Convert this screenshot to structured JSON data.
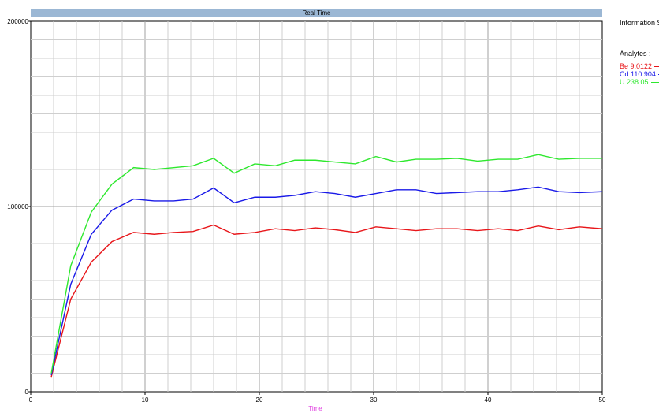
{
  "chart_data": {
    "type": "line",
    "title": "Real Time",
    "xlabel": "Time",
    "ylabel": "",
    "xlim": [
      0,
      50
    ],
    "ylim": [
      0,
      200000
    ],
    "xticks": [
      0,
      10,
      20,
      30,
      40,
      50
    ],
    "yticks": [
      0,
      100000,
      200000
    ],
    "xtick_labels": [
      "0",
      "10",
      "20",
      "30",
      "40",
      "50"
    ],
    "ytick_labels": [
      "0",
      "100000",
      "200000"
    ],
    "grid": true,
    "legend_title": "Analytes :",
    "series": [
      {
        "name": "Be 9.0122",
        "color": "#e8161a",
        "x": [
          1.8,
          3.5,
          5.3,
          7.1,
          9.0,
          10.8,
          12.5,
          14.2,
          16.0,
          17.8,
          19.6,
          21.4,
          23.1,
          24.9,
          26.6,
          28.4,
          30.2,
          32.0,
          33.7,
          35.5,
          37.3,
          39.1,
          40.9,
          42.6,
          44.4,
          46.2,
          48.0,
          50.0
        ],
        "values": [
          8000,
          50000,
          70000,
          81000,
          86000,
          85000,
          86000,
          86500,
          90000,
          85000,
          86000,
          88000,
          87000,
          88500,
          87500,
          86000,
          89000,
          88000,
          87000,
          88000,
          88000,
          87000,
          88000,
          87000,
          89500,
          87500,
          89000,
          88000
        ]
      },
      {
        "name": "Cd 110.904",
        "color": "#1a1ae8",
        "x": [
          1.8,
          3.5,
          5.3,
          7.1,
          9.0,
          10.8,
          12.5,
          14.2,
          16.0,
          17.8,
          19.6,
          21.4,
          23.1,
          24.9,
          26.6,
          28.4,
          30.2,
          32.0,
          33.7,
          35.5,
          37.3,
          39.1,
          40.9,
          42.6,
          44.4,
          46.2,
          48.0,
          50.0
        ],
        "values": [
          9000,
          58000,
          85000,
          98000,
          104000,
          103000,
          103000,
          104000,
          110000,
          102000,
          105000,
          105000,
          106000,
          108000,
          107000,
          105000,
          107000,
          109000,
          109000,
          107000,
          107500,
          108000,
          108000,
          109000,
          110500,
          108000,
          107500,
          108000
        ]
      },
      {
        "name": "U 238.05",
        "color": "#2ee82e",
        "x": [
          1.8,
          3.5,
          5.3,
          7.1,
          9.0,
          10.8,
          12.5,
          14.2,
          16.0,
          17.8,
          19.6,
          21.4,
          23.1,
          24.9,
          26.6,
          28.4,
          30.2,
          32.0,
          33.7,
          35.5,
          37.3,
          39.1,
          40.9,
          42.6,
          44.4,
          46.2,
          48.0,
          50.0
        ],
        "values": [
          10000,
          68000,
          97000,
          112000,
          121000,
          120000,
          121000,
          122000,
          126000,
          118000,
          123000,
          122000,
          125000,
          125000,
          124000,
          123000,
          127000,
          124000,
          125500,
          125500,
          126000,
          124500,
          125500,
          125500,
          128000,
          125500,
          126000,
          126000
        ]
      }
    ]
  },
  "info_panel": {
    "title": "Information S"
  }
}
